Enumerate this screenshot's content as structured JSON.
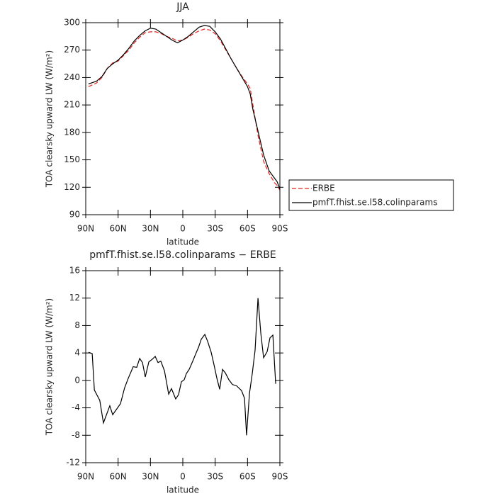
{
  "chart_data": [
    {
      "type": "line",
      "title": "JJA",
      "xlabel": "latitude",
      "ylabel": "TOA clearsky upward LW (W/m²)",
      "x": [
        87.5,
        80,
        75,
        70,
        65,
        60,
        55,
        50,
        45,
        40,
        35,
        30,
        25,
        20,
        15,
        10,
        5,
        0,
        -5,
        -10,
        -15,
        -20,
        -25,
        -30,
        -35,
        -40,
        -45,
        -50,
        -55,
        -60,
        -62.5,
        -65,
        -70,
        -75,
        -80,
        -85,
        -87.5,
        -90
      ],
      "series": [
        {
          "name": "ERBE",
          "color": "#e8201c",
          "linestyle": "dashed",
          "values": [
            230,
            234,
            240,
            250,
            256,
            258,
            264,
            270,
            278,
            284,
            289,
            290,
            290,
            288,
            285,
            283,
            280,
            281,
            284,
            288,
            291,
            293,
            292,
            288,
            280,
            270,
            260,
            250,
            241,
            233,
            228,
            210,
            175,
            148,
            135,
            125,
            122,
            117
          ]
        },
        {
          "name": "pmfT.fhist.se.l58.colinparams",
          "color": "#000000",
          "linestyle": "solid",
          "values": [
            233,
            236,
            241,
            250,
            255,
            259,
            265,
            272,
            280,
            286,
            291,
            294,
            293,
            289,
            285,
            281,
            278,
            281,
            285,
            290,
            295,
            297,
            296,
            290,
            282,
            271,
            260,
            250,
            240,
            230,
            222,
            205,
            180,
            155,
            138,
            130,
            126,
            118
          ]
        }
      ],
      "xlim": [
        90,
        -90
      ],
      "xticks": [
        {
          "value": 90,
          "label": "90N"
        },
        {
          "value": 60,
          "label": "60N"
        },
        {
          "value": 30,
          "label": "30N"
        },
        0,
        {
          "value": -30,
          "label": "30S"
        },
        {
          "value": -60,
          "label": "60S"
        },
        {
          "value": -90,
          "label": "90S"
        }
      ],
      "ylim": [
        90,
        300
      ],
      "yticks": [
        90,
        120,
        150,
        180,
        210,
        240,
        270,
        300
      ],
      "legend": "right"
    },
    {
      "type": "line",
      "title": "pmfT.fhist.se.l58.colinparams − ERBE",
      "xlabel": "latitude",
      "ylabel": "TOA clearsky upward LW (W/m²)",
      "x": [
        87.4,
        84,
        82,
        77,
        73.6,
        67.7,
        65,
        57.8,
        54,
        50.6,
        46,
        42.7,
        40,
        37.4,
        34.8,
        31.5,
        28.2,
        25.6,
        23,
        20.4,
        17,
        13.1,
        10.5,
        6.6,
        4,
        1.3,
        -1.3,
        -3.3,
        -5.9,
        -9.2,
        -11.8,
        -14.5,
        -17.1,
        -20.4,
        -23,
        -26.3,
        -28.9,
        -31.6,
        -34.2,
        -36.8,
        -39.4,
        -42.7,
        -46,
        -49.9,
        -54.5,
        -57.2,
        -59.1,
        -61.8,
        -64.4,
        -67,
        -69.7,
        -72.3,
        -74.9,
        -78.2,
        -80.8,
        -83.5,
        -86.1
      ],
      "series": [
        {
          "name": "pmfT.fhist.se.l58.colinparams − ERBE",
          "color": "#000000",
          "linestyle": "solid",
          "values": [
            4.1,
            3.9,
            -1.4,
            -2.9,
            -6.2,
            -3.7,
            -5,
            -3.4,
            -1.1,
            0.3,
            2,
            1.9,
            3.2,
            2.6,
            0.5,
            2.7,
            3.1,
            3.5,
            2.6,
            2.8,
            1.4,
            -2,
            -1.2,
            -2.7,
            -2.1,
            -0.2,
            0.1,
            1,
            1.6,
            2.8,
            3.8,
            4.8,
            6,
            6.7,
            5.7,
            4.1,
            2.3,
            0.3,
            -1.3,
            1.6,
            1.1,
            0.1,
            -0.6,
            -0.8,
            -1.5,
            -2.6,
            -8,
            -1.9,
            1,
            4.4,
            12,
            6.9,
            3.3,
            4.2,
            6.2,
            6.6,
            -0.5
          ]
        }
      ],
      "xlim": [
        90,
        -90
      ],
      "xticks": [
        {
          "value": 90,
          "label": "90N"
        },
        {
          "value": 60,
          "label": "60N"
        },
        {
          "value": 30,
          "label": "30N"
        },
        0,
        {
          "value": -30,
          "label": "30S"
        },
        {
          "value": -60,
          "label": "60S"
        },
        {
          "value": -90,
          "label": "90S"
        }
      ],
      "ylim": [
        -12,
        16
      ],
      "yticks": [
        -12,
        -8,
        -4,
        0,
        4,
        8,
        12,
        16
      ]
    }
  ]
}
